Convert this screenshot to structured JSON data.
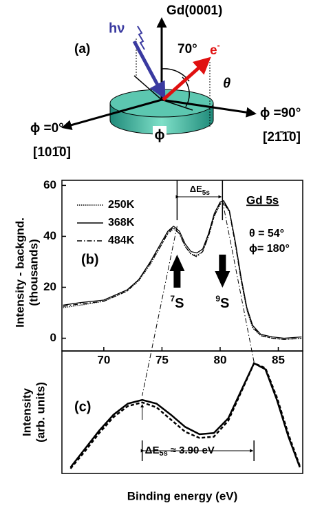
{
  "diagram": {
    "panel": "(a)",
    "photon": "hν",
    "normal": "Gd(0001)",
    "angle": "70°",
    "electron": "e",
    "electron_charge": "-",
    "theta": "θ",
    "phi_right": "ϕ =90°",
    "dir_right": "[21̄1̄0]",
    "phi_left": "ϕ =0°",
    "dir_left": "[101̄0]",
    "phi": "ϕ"
  },
  "chart_data": [
    {
      "type": "line",
      "panel": "(b)",
      "ylabel": [
        "Intensity - backgnd.",
        "(thousands)"
      ],
      "annotation": "Gd 5s",
      "delta_label": "ΔE",
      "delta_sub": "5s",
      "theta": "θ = 54°",
      "phi": "ϕ= 180°",
      "spin_labels": [
        {
          "sup": "7",
          "text": "S"
        },
        {
          "sup": "9",
          "text": "S"
        }
      ],
      "peaks": [
        76.3,
        80.2
      ],
      "legend": "upper left",
      "xlim": [
        66.4,
        87.1
      ],
      "xticks": [
        70,
        75,
        80,
        85
      ],
      "ylim": [
        -5,
        62
      ],
      "yticks": [
        0,
        20,
        40,
        60
      ],
      "x": [
        66.5,
        68,
        70,
        72,
        73,
        74,
        75,
        75.5,
        76,
        76.5,
        77,
        77.5,
        78,
        78.5,
        79,
        79.5,
        80,
        80.3,
        80.8,
        81.3,
        81.8,
        82.3,
        82.8,
        83.5,
        84.5,
        85.5,
        87
      ],
      "series": [
        {
          "name": "250K",
          "color": "#000000",
          "style": "dotted",
          "values": [
            12,
            13,
            14.5,
            18.5,
            22.5,
            29,
            37,
            41,
            43,
            41,
            36,
            33,
            32.5,
            34,
            40,
            48,
            52.5,
            53,
            49.5,
            37.5,
            23,
            11,
            4,
            1,
            0,
            -0.5,
            0
          ]
        },
        {
          "name": "368K",
          "color": "#000000",
          "style": "solid",
          "values": [
            13,
            14,
            15,
            19,
            23,
            30,
            38,
            42,
            44,
            42,
            37,
            34,
            33.5,
            35,
            41,
            49,
            53.5,
            54,
            50,
            38,
            24,
            12,
            5,
            1.5,
            0.5,
            0,
            0.5
          ]
        },
        {
          "name": "484K",
          "color": "#000000",
          "style": "dashdot",
          "values": [
            12.5,
            13.5,
            14.5,
            18.5,
            23,
            29.5,
            37,
            41.5,
            43.5,
            41,
            36,
            33,
            32,
            34,
            40,
            48,
            53,
            53.5,
            49.5,
            37,
            23,
            11.5,
            4.5,
            1,
            0,
            -0.5,
            0
          ]
        }
      ]
    },
    {
      "type": "line",
      "panel": "(c)",
      "ylabel": [
        "Intensity",
        "(arb. units)"
      ],
      "xlabel": "Binding energy (eV)",
      "delta_label": "ΔE",
      "delta_sub": "5s",
      "delta_value": "≈ 3.90 eV",
      "peaks": [
        0,
        3.9
      ],
      "xlim": [
        -2.8,
        5.6
      ],
      "ylim": [
        0,
        1
      ],
      "x": [
        -2.5,
        -2,
        -1.5,
        -1,
        -0.5,
        0,
        0.5,
        1,
        1.5,
        2,
        2.5,
        3,
        3.5,
        3.9,
        4.3,
        4.7,
        5.1,
        5.5
      ],
      "series": [
        {
          "color": "#000000",
          "style": "solid",
          "values": [
            0.05,
            0.2,
            0.35,
            0.48,
            0.57,
            0.6,
            0.57,
            0.48,
            0.38,
            0.32,
            0.33,
            0.45,
            0.7,
            0.9,
            0.85,
            0.6,
            0.3,
            0.05
          ]
        },
        {
          "color": "#000000",
          "style": "dashed",
          "values": [
            0.04,
            0.18,
            0.33,
            0.46,
            0.55,
            0.58,
            0.54,
            0.44,
            0.34,
            0.29,
            0.3,
            0.43,
            0.69,
            0.9,
            0.86,
            0.62,
            0.32,
            0.06
          ]
        }
      ]
    }
  ]
}
